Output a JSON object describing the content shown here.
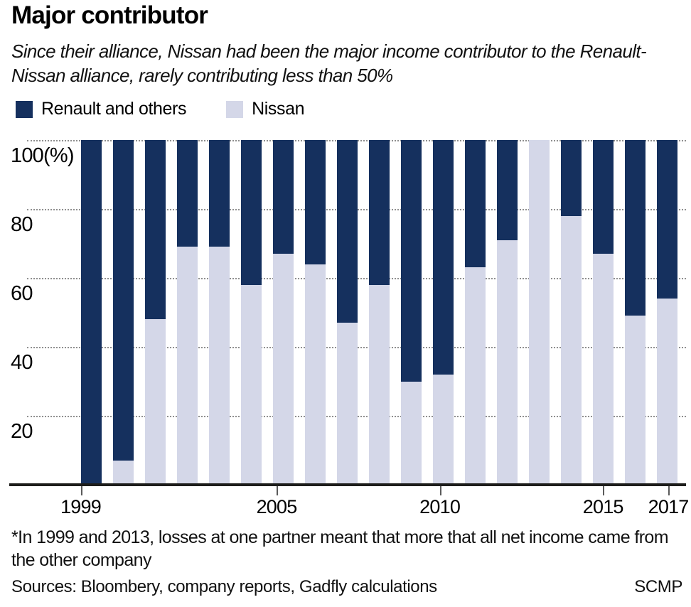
{
  "footnote": "*In 1999 and 2013, losses at one partner meant that more that all net income came from the other company",
  "sources": "Sources: Bloombery, company reports, Gadfly calculations",
  "credit": "SCMP",
  "colors": {
    "renault_navy": "#15305e",
    "nissan_lavender": "#d4d7e8",
    "gridline": "#8f8f8f",
    "axis": "#1d1d1b"
  },
  "chart_data": {
    "type": "bar",
    "stacked": true,
    "percent": true,
    "title": "Major contributor",
    "subtitle": "Since their alliance, Nissan had been the major income contributor to the Renault-Nissan alliance, rarely contributing less than 50%",
    "categories": [
      "1999",
      "2000",
      "2001",
      "2002",
      "2003",
      "2004",
      "2005",
      "2006",
      "2007",
      "2008",
      "2009",
      "2010",
      "2011",
      "2012",
      "2013",
      "2014",
      "2015",
      "2016",
      "2017"
    ],
    "series": [
      {
        "name": "Renault and others",
        "color": "#15305e",
        "values": [
          100,
          93,
          52,
          31,
          31,
          42,
          33,
          36,
          53,
          42,
          70,
          68,
          37,
          29,
          0,
          22,
          33,
          51,
          46
        ]
      },
      {
        "name": "Nissan",
        "color": "#d4d7e8",
        "values": [
          0,
          7,
          48,
          69,
          69,
          58,
          67,
          64,
          47,
          58,
          30,
          32,
          63,
          71,
          100,
          78,
          67,
          49,
          54
        ]
      }
    ],
    "ylabel": "",
    "xlabel": "",
    "ylim": [
      0,
      100
    ],
    "y_ticks": [
      100,
      80,
      60,
      40,
      20
    ],
    "y_tick_labels": [
      "100(%)",
      "80",
      "60",
      "40",
      "20"
    ],
    "x_tick_labels": [
      "1999",
      "2005",
      "2010",
      "2015",
      "2017"
    ],
    "grid": "horizontal dotted",
    "legend_position": "top-left"
  }
}
